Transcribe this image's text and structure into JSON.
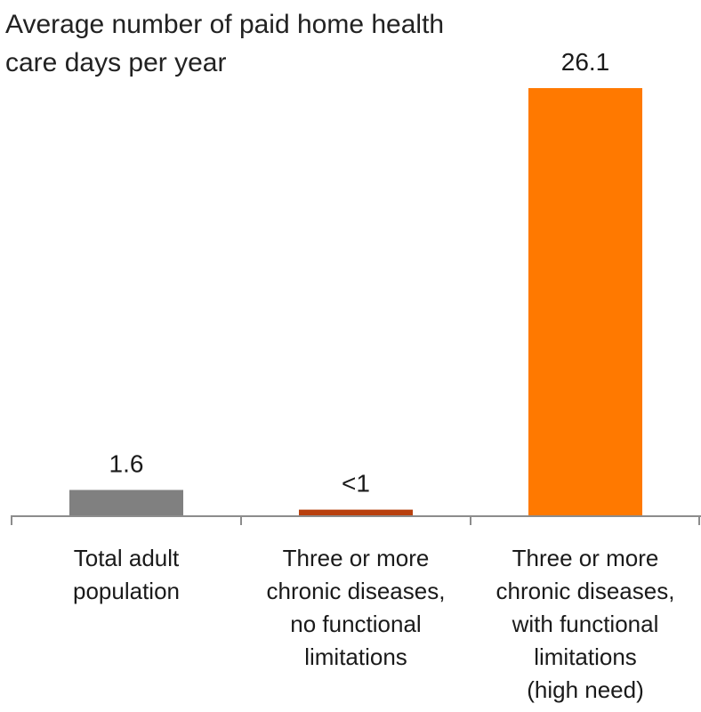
{
  "chart_data": {
    "type": "bar",
    "ylabel": "Average number of paid home health care days per year",
    "categories": [
      "Total adult population",
      "Three or more chronic diseases, no functional limitations",
      "Three or more chronic diseases, with functional limitations (high need)"
    ],
    "category_lines": [
      [
        "Total adult",
        "population"
      ],
      [
        "Three or more",
        "chronic diseases,",
        "no functional",
        "limitations"
      ],
      [
        "Three or more",
        "chronic diseases,",
        "with functional",
        "limitations",
        "(high need)"
      ]
    ],
    "values": [
      1.6,
      0.4,
      26.1
    ],
    "data_labels": [
      "1.6",
      "<1",
      "26.1"
    ],
    "colors": [
      "#808080",
      "#B8400E",
      "#FF7900"
    ],
    "ylim": [
      0,
      26.1
    ],
    "grid": false,
    "legend": false
  }
}
